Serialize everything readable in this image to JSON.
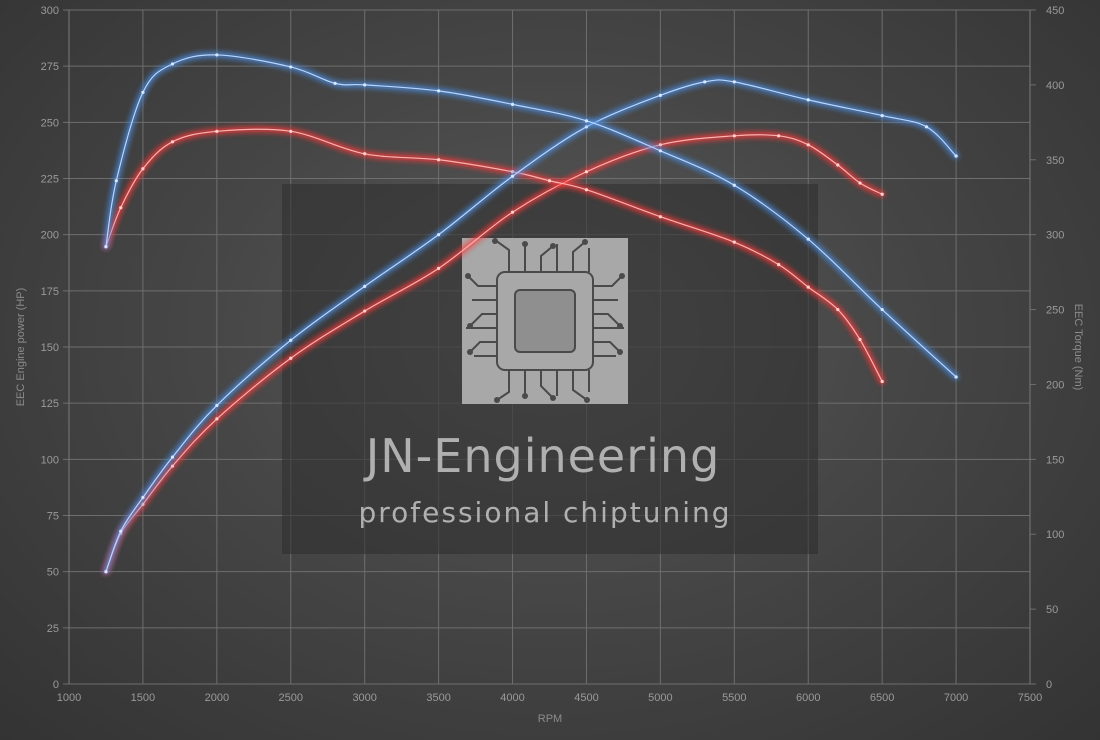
{
  "chart_data": {
    "type": "line",
    "xlabel": "RPM",
    "ylabel_left": "EEC Engine power (HP)",
    "ylabel_right": "EEC Torque (Nm)",
    "xlim": [
      1000,
      7500
    ],
    "xticks": [
      1000,
      1500,
      2000,
      2500,
      3000,
      3500,
      4000,
      4500,
      5000,
      5500,
      6000,
      6500,
      7000,
      7500
    ],
    "ylim_left": [
      0,
      300
    ],
    "yticks_left": [
      0,
      25,
      50,
      75,
      100,
      125,
      150,
      175,
      200,
      225,
      250,
      275,
      300
    ],
    "ylim_right": [
      0,
      450
    ],
    "yticks_right": [
      0,
      50,
      100,
      150,
      200,
      250,
      300,
      350,
      400,
      450
    ],
    "grid": true,
    "series": [
      {
        "axis": "left",
        "color": "#ff3b3b",
        "x": [
          1250,
          1350,
          1500,
          1700,
          2000,
          2500,
          3000,
          3500,
          4000,
          4500,
          5000,
          5500,
          5800,
          6000,
          6200,
          6350,
          6500
        ],
        "values": [
          50,
          67,
          80,
          97,
          118,
          145,
          166,
          185,
          210,
          228,
          240,
          244,
          244,
          240,
          231,
          223,
          218
        ]
      },
      {
        "axis": "right",
        "color": "#ff3b3b",
        "x": [
          1250,
          1350,
          1500,
          1700,
          2000,
          2500,
          3000,
          3500,
          4000,
          4250,
          4500,
          5000,
          5500,
          5800,
          6000,
          6200,
          6350,
          6500
        ],
        "values": [
          292,
          318,
          344,
          362,
          369,
          369,
          354,
          350,
          342,
          336,
          330,
          312,
          295,
          280,
          265,
          250,
          230,
          202
        ]
      },
      {
        "axis": "left",
        "color": "#4d8fe3",
        "x": [
          1250,
          1350,
          1500,
          1700,
          2000,
          2500,
          3000,
          3500,
          4000,
          4500,
          5000,
          5300,
          5500,
          6000,
          6500,
          6800,
          7000
        ],
        "values": [
          50,
          68,
          83,
          101,
          124,
          153,
          177,
          200,
          226,
          248,
          262,
          268,
          268,
          260,
          253,
          248,
          235
        ]
      },
      {
        "axis": "right",
        "color": "#4d8fe3",
        "x": [
          1250,
          1320,
          1500,
          1700,
          2000,
          2500,
          2800,
          3000,
          3500,
          4000,
          4500,
          5000,
          5500,
          6000,
          6500,
          7000
        ],
        "values": [
          292,
          336,
          395,
          414,
          420,
          412,
          401,
          400,
          396,
          387,
          376,
          356,
          333,
          297,
          250,
          205
        ]
      }
    ],
    "watermark": {
      "title": "JN-Engineering",
      "subtitle": "professional chiptuning"
    }
  }
}
